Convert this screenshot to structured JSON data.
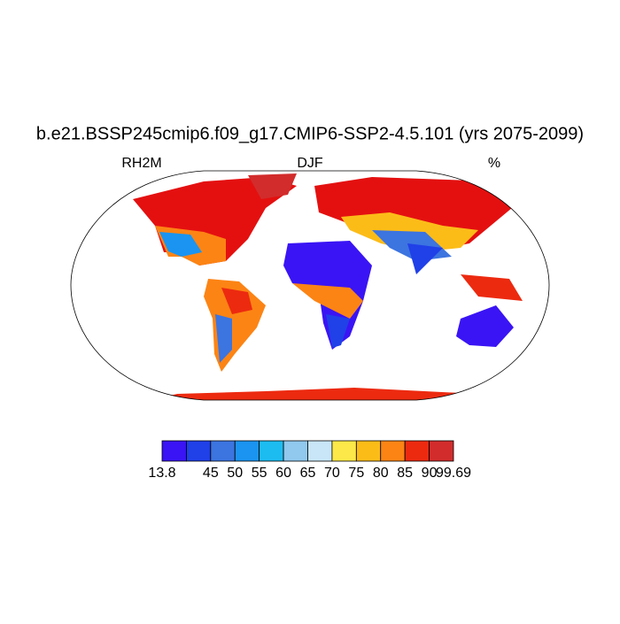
{
  "chart_data": {
    "type": "map",
    "title": "b.e21.BSSP245cmip6.f09_g17.CMIP6-SSP2-4.5.101 (yrs 2075-2099)",
    "left_subtitle": "RH2M",
    "center_subtitle": "DJF",
    "right_subtitle": "%",
    "colorbar": {
      "colors": [
        "#3a14f4",
        "#2040e8",
        "#3c74e0",
        "#1a94f0",
        "#1cbcf0",
        "#90c8ee",
        "#c8e6f8",
        "#fce848",
        "#fcbc18",
        "#fc8414",
        "#ec2a10",
        "#d22c2c"
      ],
      "levels": [
        13.8,
        null,
        45,
        50,
        55,
        60,
        65,
        70,
        75,
        80,
        85,
        90,
        99.69
      ]
    }
  }
}
